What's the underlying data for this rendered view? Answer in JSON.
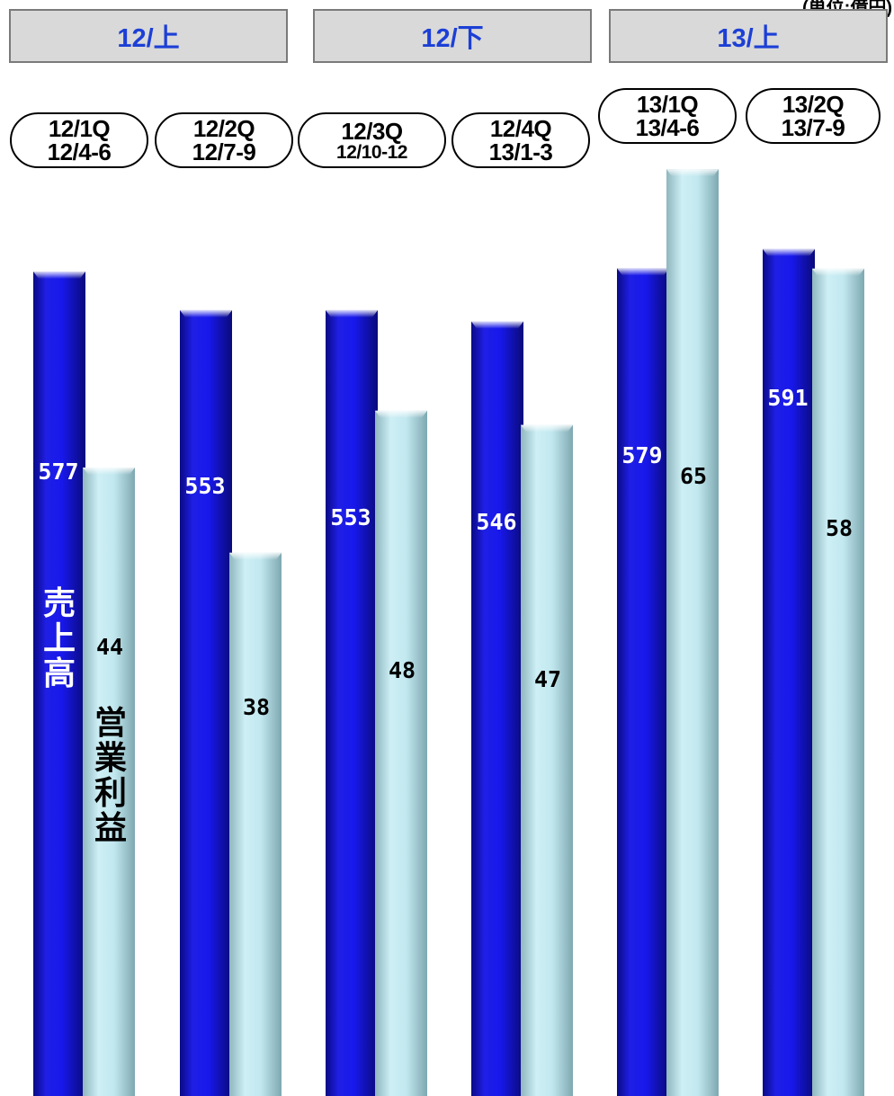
{
  "unit_label": "(単位:億円)",
  "halves": [
    "12/上",
    "12/下",
    "13/上"
  ],
  "periods": [
    {
      "quarter": "12/1Q",
      "months": "12/4-6"
    },
    {
      "quarter": "12/2Q",
      "months": "12/7-9"
    },
    {
      "quarter": "12/3Q",
      "months": "12/10-12"
    },
    {
      "quarter": "12/4Q",
      "months": "13/1-3"
    },
    {
      "quarter": "13/1Q",
      "months": "13/4-6"
    },
    {
      "quarter": "13/2Q",
      "months": "13/7-9"
    }
  ],
  "series_labels": {
    "sales": "売上高",
    "operating_profit": "営業利益"
  },
  "colors": {
    "sales": "#1414e0",
    "operating_profit": "#b9e4ec",
    "half_text": "#1c3fd6"
  },
  "chart_data": {
    "type": "bar",
    "categories": [
      "12/1Q",
      "12/2Q",
      "12/3Q",
      "12/4Q",
      "13/1Q",
      "13/2Q"
    ],
    "series": [
      {
        "name": "売上高",
        "values": [
          577,
          553,
          553,
          546,
          579,
          591
        ]
      },
      {
        "name": "営業利益",
        "values": [
          44,
          38,
          48,
          47,
          65,
          58
        ]
      }
    ],
    "dual_axis": true,
    "title": "",
    "xlabel": "",
    "ylabel": ""
  }
}
